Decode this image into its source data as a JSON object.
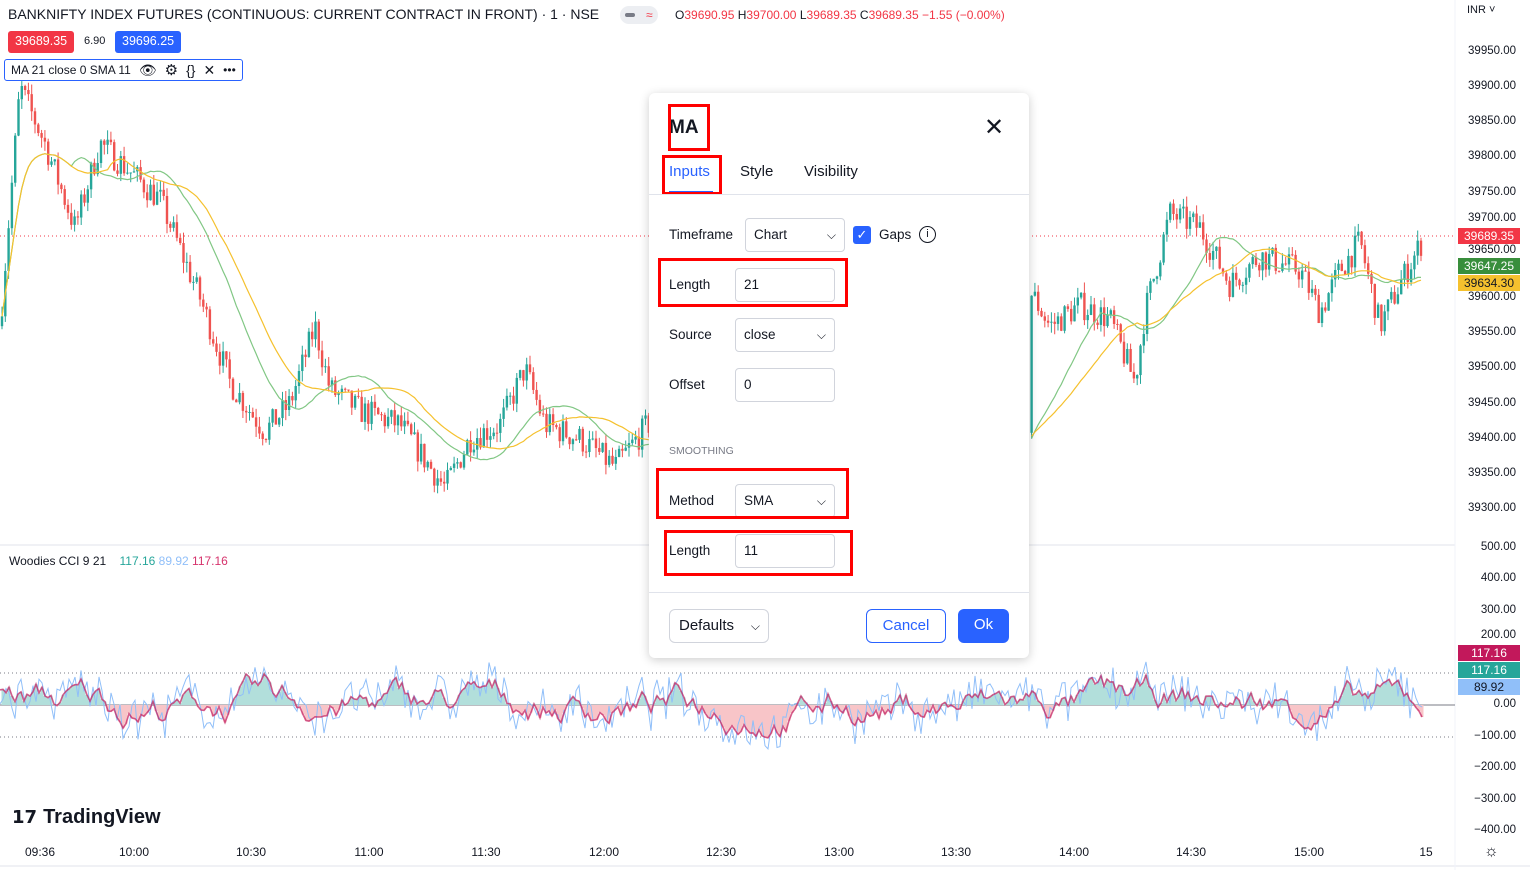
{
  "header": {
    "symbol": "BANKNIFTY INDEX FUTURES (CONTINUOUS: CURRENT CONTRACT IN FRONT) · 1 · NSE",
    "ohlc": {
      "o_label": "O",
      "o": "39690.95",
      "h_label": "H",
      "h": "39700.00",
      "l_label": "L",
      "l": "39689.35",
      "c_label": "C",
      "c": "39689.35",
      "change": "−1.55 (−0.00%)"
    },
    "bid": "39689.35",
    "spread": "6.90",
    "ask": "39696.25",
    "currency": "INR"
  },
  "indicator_legend": {
    "text": "MA 21 close 0 SMA 11",
    "icons": [
      "eye-icon",
      "gear-icon",
      "braces-icon",
      "close-icon",
      "more-icon"
    ]
  },
  "price_axis": [
    "39950.00",
    "39900.00",
    "39850.00",
    "39800.00",
    "39750.00",
    "39700.00",
    "39650.00",
    "39600.00",
    "39550.00",
    "39500.00",
    "39450.00",
    "39400.00",
    "39350.00",
    "39300.00"
  ],
  "price_tags": {
    "last": "39689.35",
    "ma": "39647.25",
    "smoothing": "39634.30"
  },
  "cci": {
    "name": "Woodies CCI 9 21",
    "v1": "117.16",
    "v2": "89.92",
    "v3": "117.16",
    "axis": [
      "500.00",
      "400.00",
      "300.00",
      "200.00",
      "0.00",
      "−100.00",
      "−200.00",
      "−300.00",
      "−400.00"
    ],
    "tags": [
      "117.16",
      "117.16",
      "89.92"
    ]
  },
  "time_axis": [
    "09:36",
    "10:00",
    "10:30",
    "11:00",
    "11:30",
    "12:00",
    "12:30",
    "13:00",
    "13:30",
    "14:00",
    "14:30",
    "15:00",
    "15"
  ],
  "logo": "TradingView",
  "colors": {
    "up": "#26a69a",
    "down": "#ef5350",
    "ma": "#81c784",
    "smooth": "#f5c12e",
    "accent": "#2962ff"
  },
  "dialog": {
    "title": "MA",
    "tabs": [
      "Inputs",
      "Style",
      "Visibility"
    ],
    "active_tab": "Inputs",
    "timeframe_label": "Timeframe",
    "timeframe": "Chart",
    "gaps_label": "Gaps",
    "gaps_checked": true,
    "length_label": "Length",
    "length": "21",
    "source_label": "Source",
    "source": "close",
    "offset_label": "Offset",
    "offset": "0",
    "smoothing_header": "SMOOTHING",
    "method_label": "Method",
    "method": "SMA",
    "smooth_length_label": "Length",
    "smooth_length": "11",
    "defaults": "Defaults",
    "cancel": "Cancel",
    "ok": "Ok"
  }
}
